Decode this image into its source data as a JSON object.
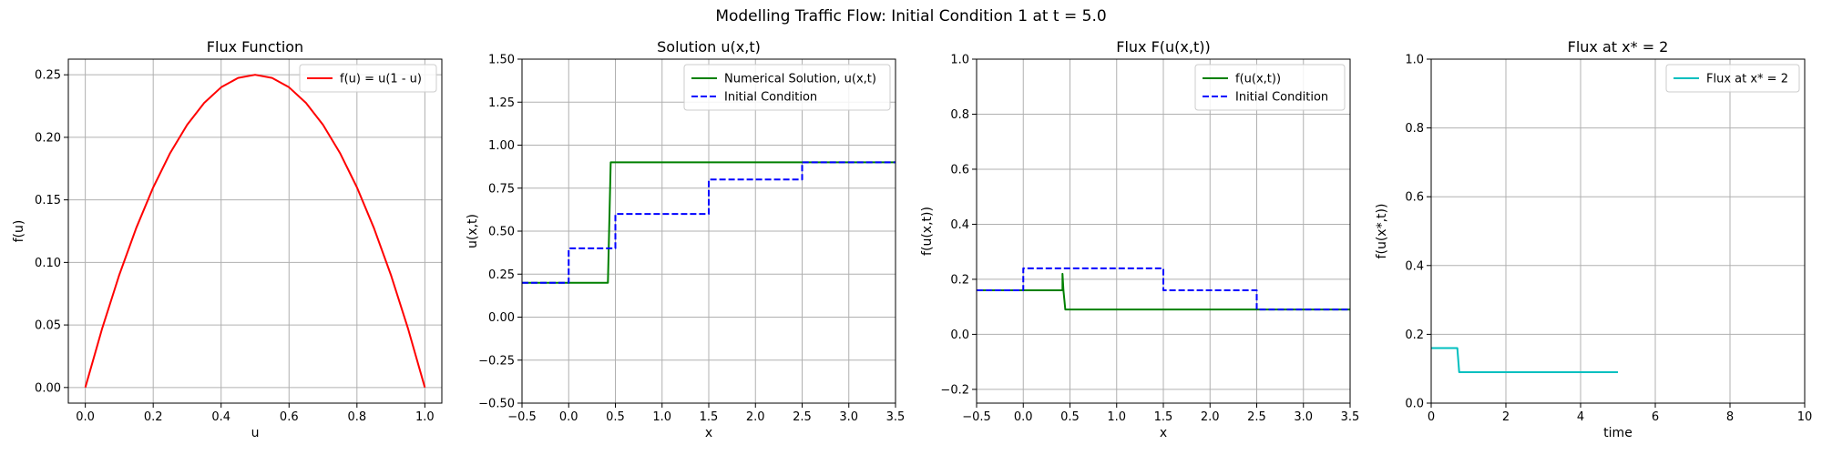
{
  "figure": {
    "suptitle": "Modelling Traffic Flow: Initial Condition 1 at t = 5.0"
  },
  "chart_data": [
    {
      "type": "line",
      "title": "Flux Function",
      "xlabel": "u",
      "ylabel": "f(u)",
      "xlim": [
        -0.05,
        1.05
      ],
      "ylim": [
        -0.0125,
        0.2625
      ],
      "xticks": [
        0.0,
        0.2,
        0.4,
        0.6,
        0.8,
        1.0
      ],
      "xtick_labels": [
        "0.0",
        "0.2",
        "0.4",
        "0.6",
        "0.8",
        "1.0"
      ],
      "yticks": [
        0.0,
        0.05,
        0.1,
        0.15,
        0.2,
        0.25
      ],
      "ytick_labels": [
        "0.00",
        "0.05",
        "0.10",
        "0.15",
        "0.20",
        "0.25"
      ],
      "grid": true,
      "legend_position": "top-right",
      "series": [
        {
          "name": "f(u) = u(1 - u)",
          "color": "#ff0000",
          "dash": "solid",
          "x": [
            0.0,
            0.05,
            0.1,
            0.15,
            0.2,
            0.25,
            0.3,
            0.35,
            0.4,
            0.45,
            0.5,
            0.55,
            0.6,
            0.65,
            0.7,
            0.75,
            0.8,
            0.85,
            0.9,
            0.95,
            1.0
          ],
          "y": [
            0.0,
            0.0475,
            0.09,
            0.1275,
            0.16,
            0.1875,
            0.21,
            0.2275,
            0.24,
            0.2475,
            0.25,
            0.2475,
            0.24,
            0.2275,
            0.21,
            0.1875,
            0.16,
            0.1275,
            0.09,
            0.0475,
            0.0
          ]
        }
      ]
    },
    {
      "type": "line",
      "title": "Solution u(x,t)",
      "xlabel": "x",
      "ylabel": "u(x,t)",
      "xlim": [
        -0.5,
        3.5
      ],
      "ylim": [
        -0.5,
        1.5
      ],
      "xticks": [
        -0.5,
        0.0,
        0.5,
        1.0,
        1.5,
        2.0,
        2.5,
        3.0,
        3.5
      ],
      "xtick_labels": [
        "−0.5",
        "0.0",
        "0.5",
        "1.0",
        "1.5",
        "2.0",
        "2.5",
        "3.0",
        "3.5"
      ],
      "yticks": [
        -0.5,
        -0.25,
        0.0,
        0.25,
        0.5,
        0.75,
        1.0,
        1.25,
        1.5
      ],
      "ytick_labels": [
        "−0.50",
        "−0.25",
        "0.00",
        "0.25",
        "0.50",
        "0.75",
        "1.00",
        "1.25",
        "1.50"
      ],
      "grid": true,
      "legend_position": "top-right",
      "series": [
        {
          "name": "Numerical Solution, u(x,t)",
          "color": "#008000",
          "dash": "solid",
          "x": [
            -0.5,
            0.42,
            0.45,
            3.5
          ],
          "y": [
            0.2,
            0.2,
            0.9,
            0.9
          ]
        },
        {
          "name": "Initial Condition",
          "color": "#0000ff",
          "dash": "dashed",
          "x": [
            -0.5,
            0.0,
            0.0,
            0.5,
            0.5,
            1.5,
            1.5,
            2.5,
            2.5,
            3.5
          ],
          "y": [
            0.2,
            0.2,
            0.4,
            0.4,
            0.6,
            0.6,
            0.8,
            0.8,
            0.9,
            0.9
          ]
        }
      ]
    },
    {
      "type": "line",
      "title": "Flux F(u(x,t))",
      "xlabel": "x",
      "ylabel": "f(u(x,t))",
      "xlim": [
        -0.5,
        3.5
      ],
      "ylim": [
        -0.25,
        1.0
      ],
      "xticks": [
        -0.5,
        0.0,
        0.5,
        1.0,
        1.5,
        2.0,
        2.5,
        3.0,
        3.5
      ],
      "xtick_labels": [
        "−0.5",
        "0.0",
        "0.5",
        "1.0",
        "1.5",
        "2.0",
        "2.5",
        "3.0",
        "3.5"
      ],
      "yticks": [
        -0.2,
        0.0,
        0.2,
        0.4,
        0.6,
        0.8,
        1.0
      ],
      "ytick_labels": [
        "−0.2",
        "0.0",
        "0.2",
        "0.4",
        "0.6",
        "0.8",
        "1.0"
      ],
      "grid": true,
      "legend_position": "top-right",
      "series": [
        {
          "name": "f(u(x,t))",
          "color": "#008000",
          "dash": "solid",
          "x": [
            -0.5,
            0.42,
            0.42,
            0.43,
            0.45,
            3.5
          ],
          "y": [
            0.16,
            0.16,
            0.22,
            0.16,
            0.09,
            0.09
          ]
        },
        {
          "name": "Initial Condition",
          "color": "#0000ff",
          "dash": "dashed",
          "x": [
            -0.5,
            0.0,
            0.0,
            1.5,
            1.5,
            2.5,
            2.5,
            3.5
          ],
          "y": [
            0.16,
            0.16,
            0.24,
            0.24,
            0.16,
            0.16,
            0.09,
            0.09
          ]
        }
      ]
    },
    {
      "type": "line",
      "title": "Flux at x* = 2",
      "xlabel": "time",
      "ylabel": "f(u(x*,t))",
      "xlim": [
        0,
        10
      ],
      "ylim": [
        0,
        1
      ],
      "xticks": [
        0,
        2,
        4,
        6,
        8,
        10
      ],
      "xtick_labels": [
        "0",
        "2",
        "4",
        "6",
        "8",
        "10"
      ],
      "yticks": [
        0.0,
        0.2,
        0.4,
        0.6,
        0.8,
        1.0
      ],
      "ytick_labels": [
        "0.0",
        "0.2",
        "0.4",
        "0.6",
        "0.8",
        "1.0"
      ],
      "grid": true,
      "legend_position": "top-right",
      "series": [
        {
          "name": "Flux at x* = 2",
          "color": "#00bfbf",
          "dash": "solid",
          "x": [
            0.0,
            0.7,
            0.75,
            5.0
          ],
          "y": [
            0.16,
            0.16,
            0.09,
            0.09
          ]
        }
      ]
    }
  ]
}
